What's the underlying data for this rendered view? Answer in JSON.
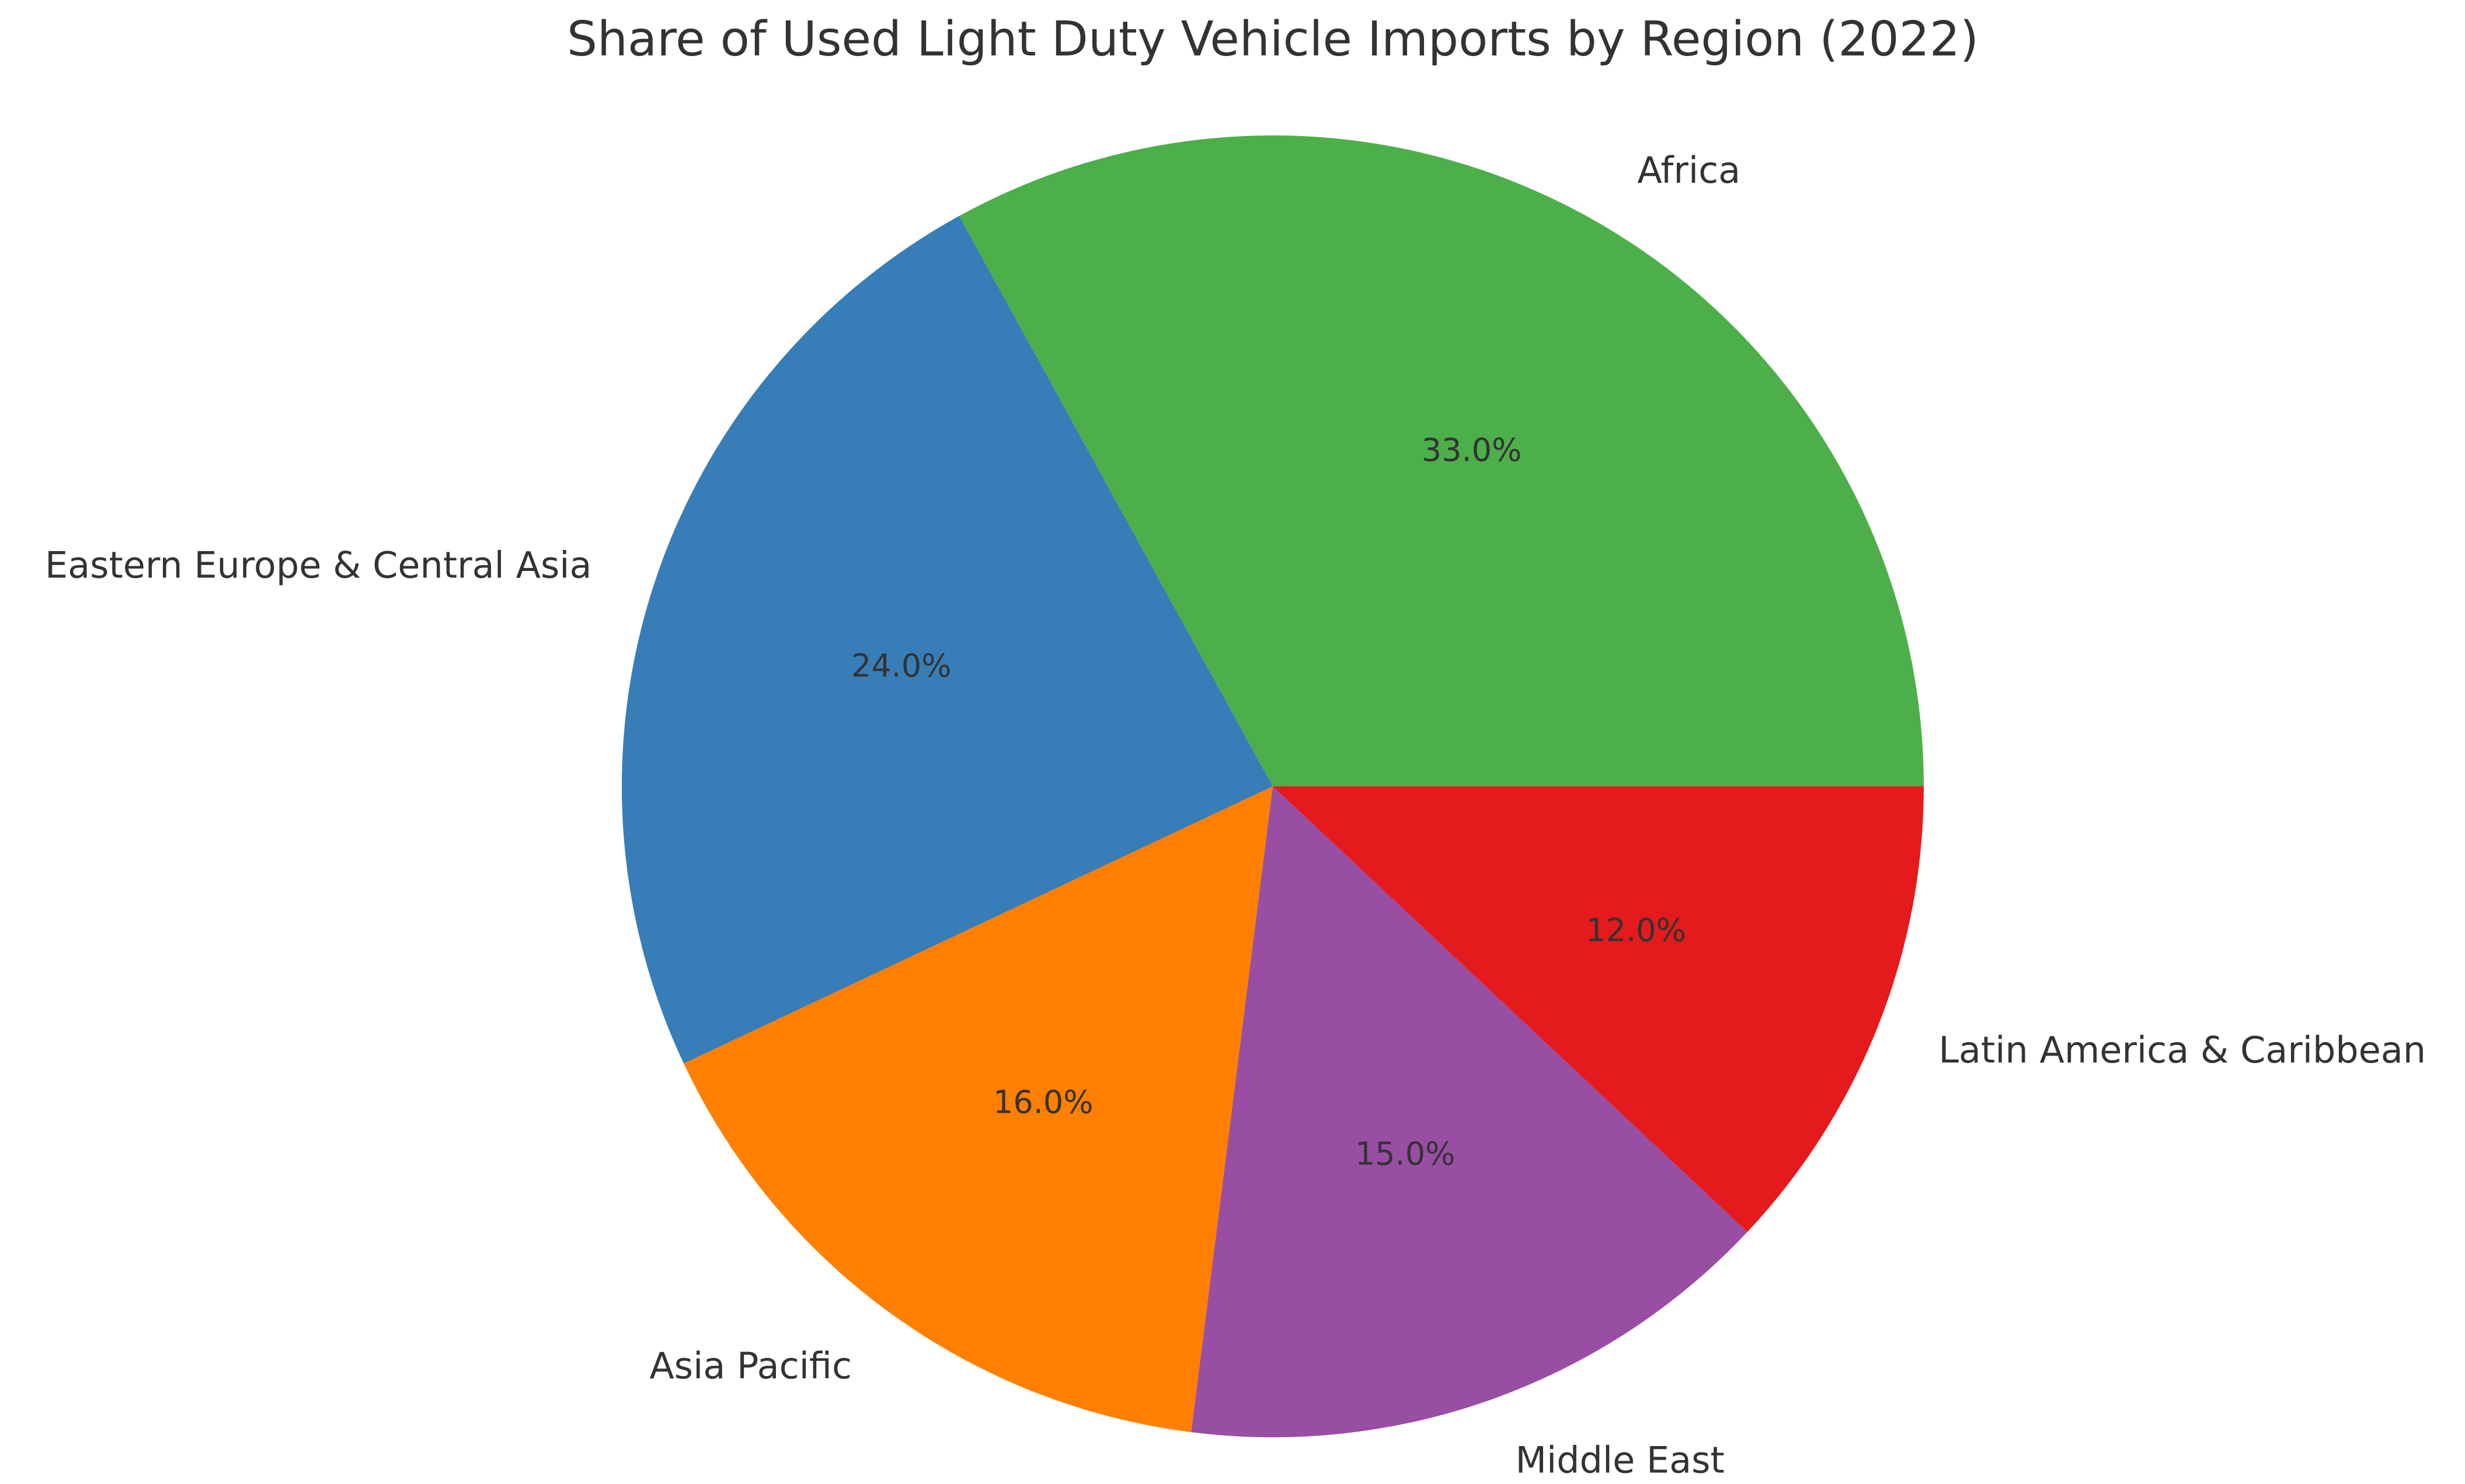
{
  "chart_data": {
    "type": "pie",
    "title": "Share of Used Light Duty Vehicle Imports by Region (2022)",
    "start_angle_deg": 0,
    "direction": "counterclockwise",
    "slices": [
      {
        "label": "Africa",
        "value": 33.0,
        "pct_label": "33.0%",
        "color": "#4daf4a"
      },
      {
        "label": "Eastern Europe & Central Asia",
        "value": 24.0,
        "pct_label": "24.0%",
        "color": "#377eb8"
      },
      {
        "label": "Asia Pacific",
        "value": 16.0,
        "pct_label": "16.0%",
        "color": "#ff7f00"
      },
      {
        "label": "Middle East",
        "value": 15.0,
        "pct_label": "15.0%",
        "color": "#984ea3"
      },
      {
        "label": "Latin America & Caribbean",
        "value": 12.0,
        "pct_label": "12.0%",
        "color": "#e41a1c"
      }
    ]
  }
}
